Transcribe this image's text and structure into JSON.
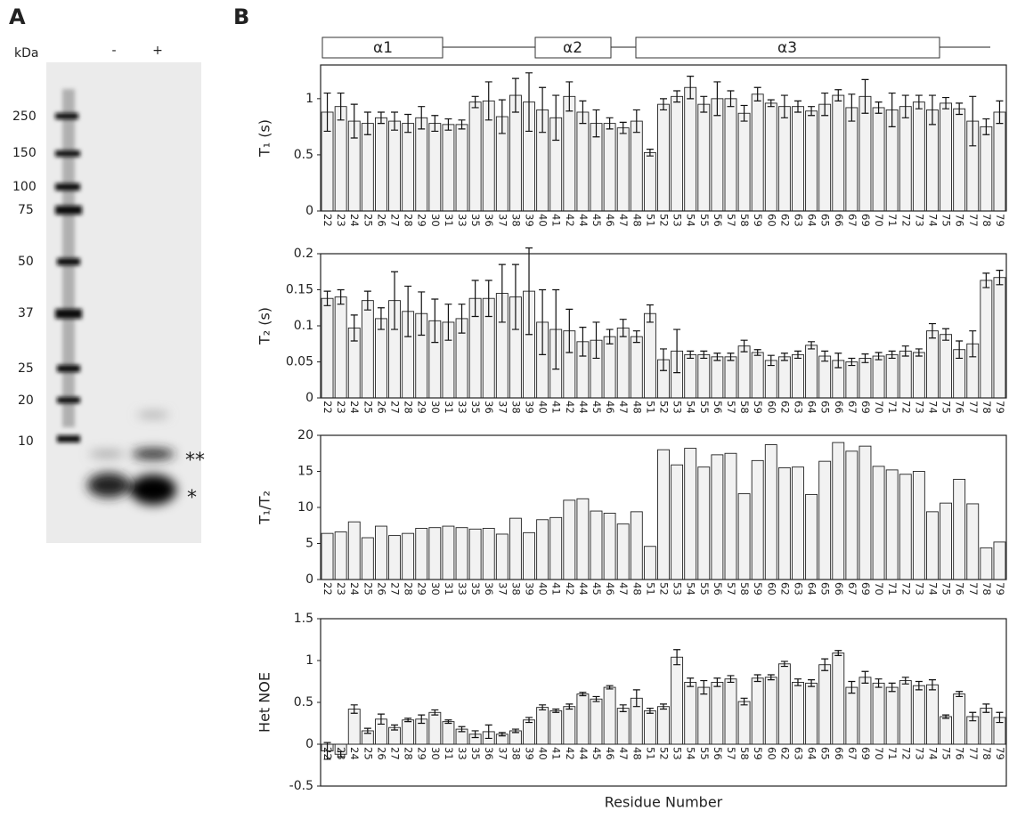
{
  "panel_a": {
    "label": "A",
    "unit": "kDa",
    "lanes": [
      "-",
      "+"
    ],
    "markers": [
      "250",
      "150",
      "100",
      "75",
      "50",
      "37",
      "25",
      "20",
      "10"
    ],
    "band_marks": [
      "**",
      "*"
    ]
  },
  "panel_b": {
    "label": "B",
    "structure": [
      "α1",
      "α2",
      "α3"
    ]
  },
  "chart_data": [
    {
      "type": "bar",
      "y_label": "T₁ (s)",
      "color": "#f2f2f2",
      "categories": [
        "22",
        "23",
        "24",
        "25",
        "26",
        "27",
        "28",
        "29",
        "30",
        "31",
        "33",
        "35",
        "36",
        "37",
        "38",
        "39",
        "40",
        "41",
        "42",
        "44",
        "45",
        "46",
        "47",
        "48",
        "51",
        "52",
        "53",
        "54",
        "55",
        "56",
        "57",
        "58",
        "59",
        "60",
        "62",
        "63",
        "64",
        "65",
        "66",
        "67",
        "69",
        "70",
        "71",
        "72",
        "73",
        "74",
        "75",
        "76",
        "77",
        "78",
        "79"
      ],
      "values": [
        0.88,
        0.93,
        0.8,
        0.78,
        0.83,
        0.8,
        0.78,
        0.83,
        0.78,
        0.77,
        0.77,
        0.97,
        0.98,
        0.84,
        1.03,
        0.97,
        0.9,
        0.83,
        1.02,
        0.88,
        0.78,
        0.78,
        0.74,
        0.8,
        0.52,
        0.95,
        1.02,
        1.1,
        0.95,
        1.0,
        1.0,
        0.87,
        1.04,
        0.96,
        0.93,
        0.93,
        0.89,
        0.95,
        1.03,
        0.92,
        1.02,
        0.92,
        0.9,
        0.93,
        0.97,
        0.9,
        0.96,
        0.91,
        0.8,
        0.75,
        0.88
      ],
      "errors": [
        0.17,
        0.12,
        0.15,
        0.1,
        0.05,
        0.08,
        0.08,
        0.1,
        0.07,
        0.05,
        0.04,
        0.05,
        0.17,
        0.15,
        0.15,
        0.26,
        0.2,
        0.2,
        0.13,
        0.1,
        0.12,
        0.05,
        0.05,
        0.1,
        0.03,
        0.05,
        0.05,
        0.1,
        0.07,
        0.15,
        0.07,
        0.07,
        0.06,
        0.03,
        0.1,
        0.05,
        0.04,
        0.1,
        0.05,
        0.12,
        0.15,
        0.05,
        0.15,
        0.1,
        0.06,
        0.13,
        0.05,
        0.05,
        0.22,
        0.07,
        0.1
      ],
      "ylim": [
        0,
        1.3
      ],
      "yticks": [
        0,
        0.5,
        1
      ]
    },
    {
      "type": "bar",
      "y_label": "T₂ (s)",
      "color": "#f2f2f2",
      "categories": [
        "22",
        "23",
        "24",
        "25",
        "26",
        "27",
        "28",
        "29",
        "30",
        "31",
        "33",
        "35",
        "36",
        "37",
        "38",
        "39",
        "40",
        "41",
        "42",
        "44",
        "45",
        "46",
        "47",
        "48",
        "51",
        "52",
        "53",
        "54",
        "55",
        "56",
        "57",
        "58",
        "59",
        "60",
        "62",
        "63",
        "64",
        "65",
        "66",
        "67",
        "69",
        "70",
        "71",
        "72",
        "73",
        "74",
        "75",
        "76",
        "77",
        "78",
        "79"
      ],
      "values": [
        0.138,
        0.14,
        0.097,
        0.135,
        0.11,
        0.135,
        0.12,
        0.117,
        0.107,
        0.105,
        0.11,
        0.138,
        0.138,
        0.145,
        0.14,
        0.148,
        0.105,
        0.095,
        0.093,
        0.078,
        0.08,
        0.085,
        0.097,
        0.085,
        0.117,
        0.053,
        0.065,
        0.06,
        0.06,
        0.057,
        0.057,
        0.072,
        0.063,
        0.052,
        0.057,
        0.06,
        0.073,
        0.058,
        0.052,
        0.05,
        0.055,
        0.058,
        0.06,
        0.065,
        0.063,
        0.093,
        0.088,
        0.067,
        0.075,
        0.163,
        0.167
      ],
      "errors": [
        0.01,
        0.01,
        0.018,
        0.013,
        0.015,
        0.04,
        0.035,
        0.03,
        0.03,
        0.025,
        0.02,
        0.025,
        0.025,
        0.04,
        0.045,
        0.06,
        0.045,
        0.055,
        0.03,
        0.02,
        0.025,
        0.01,
        0.012,
        0.008,
        0.012,
        0.015,
        0.03,
        0.005,
        0.005,
        0.005,
        0.005,
        0.008,
        0.004,
        0.007,
        0.005,
        0.005,
        0.005,
        0.007,
        0.01,
        0.005,
        0.006,
        0.005,
        0.005,
        0.007,
        0.005,
        0.01,
        0.008,
        0.012,
        0.018,
        0.01,
        0.01
      ],
      "ylim": [
        0,
        0.2
      ],
      "yticks": [
        0,
        0.05,
        0.1,
        0.15,
        0.2
      ]
    },
    {
      "type": "bar",
      "y_label": "T₁/T₂",
      "color": "#f2f2f2",
      "categories": [
        "22",
        "23",
        "24",
        "25",
        "26",
        "27",
        "28",
        "29",
        "30",
        "31",
        "33",
        "35",
        "36",
        "37",
        "38",
        "39",
        "40",
        "41",
        "42",
        "44",
        "45",
        "46",
        "47",
        "48",
        "51",
        "52",
        "53",
        "54",
        "55",
        "56",
        "57",
        "58",
        "59",
        "60",
        "62",
        "63",
        "64",
        "65",
        "66",
        "67",
        "69",
        "70",
        "71",
        "72",
        "73",
        "74",
        "75",
        "76",
        "77",
        "78",
        "79"
      ],
      "values": [
        6.4,
        6.6,
        8.0,
        5.8,
        7.4,
        6.1,
        6.4,
        7.1,
        7.2,
        7.4,
        7.2,
        7.0,
        7.1,
        6.3,
        8.5,
        6.5,
        8.3,
        8.6,
        11.0,
        11.2,
        9.5,
        9.2,
        7.7,
        9.4,
        4.6,
        18.0,
        15.9,
        18.2,
        15.6,
        17.3,
        17.5,
        11.9,
        16.5,
        18.7,
        15.5,
        15.6,
        11.8,
        16.4,
        19.0,
        17.8,
        18.5,
        15.7,
        15.2,
        14.6,
        15.0,
        9.4,
        10.6,
        13.9,
        10.5,
        4.4,
        5.2
      ],
      "ylim": [
        0,
        20
      ],
      "yticks": [
        0,
        5,
        10,
        15,
        20
      ]
    },
    {
      "type": "bar",
      "y_label": "Het NOE",
      "x_label": "Residue Number",
      "color": "#f2f2f2",
      "categories": [
        "22",
        "23",
        "24",
        "25",
        "26",
        "27",
        "28",
        "29",
        "30",
        "31",
        "33",
        "35",
        "36",
        "37",
        "38",
        "39",
        "40",
        "41",
        "42",
        "44",
        "45",
        "46",
        "47",
        "48",
        "51",
        "52",
        "53",
        "54",
        "55",
        "56",
        "57",
        "58",
        "59",
        "60",
        "62",
        "63",
        "64",
        "65",
        "66",
        "67",
        "69",
        "70",
        "71",
        "72",
        "73",
        "74",
        "75",
        "76",
        "77",
        "78",
        "79"
      ],
      "values": [
        -0.08,
        -0.12,
        0.42,
        0.16,
        0.3,
        0.2,
        0.29,
        0.3,
        0.38,
        0.27,
        0.18,
        0.12,
        0.15,
        0.12,
        0.16,
        0.29,
        0.44,
        0.4,
        0.45,
        0.6,
        0.54,
        0.68,
        0.43,
        0.55,
        0.4,
        0.45,
        1.04,
        0.74,
        0.68,
        0.74,
        0.78,
        0.51,
        0.79,
        0.8,
        0.96,
        0.74,
        0.73,
        0.95,
        1.09,
        0.68,
        0.8,
        0.73,
        0.68,
        0.76,
        0.7,
        0.71,
        0.33,
        0.6,
        0.33,
        0.43,
        0.32
      ],
      "errors": [
        0.1,
        0.03,
        0.05,
        0.03,
        0.06,
        0.03,
        0.02,
        0.05,
        0.03,
        0.02,
        0.03,
        0.04,
        0.08,
        0.02,
        0.02,
        0.03,
        0.03,
        0.02,
        0.03,
        0.02,
        0.03,
        0.02,
        0.04,
        0.1,
        0.03,
        0.03,
        0.09,
        0.05,
        0.08,
        0.05,
        0.04,
        0.04,
        0.04,
        0.03,
        0.03,
        0.04,
        0.04,
        0.07,
        0.03,
        0.07,
        0.07,
        0.05,
        0.05,
        0.04,
        0.05,
        0.06,
        0.02,
        0.03,
        0.05,
        0.05,
        0.06
      ],
      "ylim": [
        -0.5,
        1.5
      ],
      "yticks": [
        -0.5,
        0,
        0.5,
        1,
        1.5
      ]
    }
  ]
}
